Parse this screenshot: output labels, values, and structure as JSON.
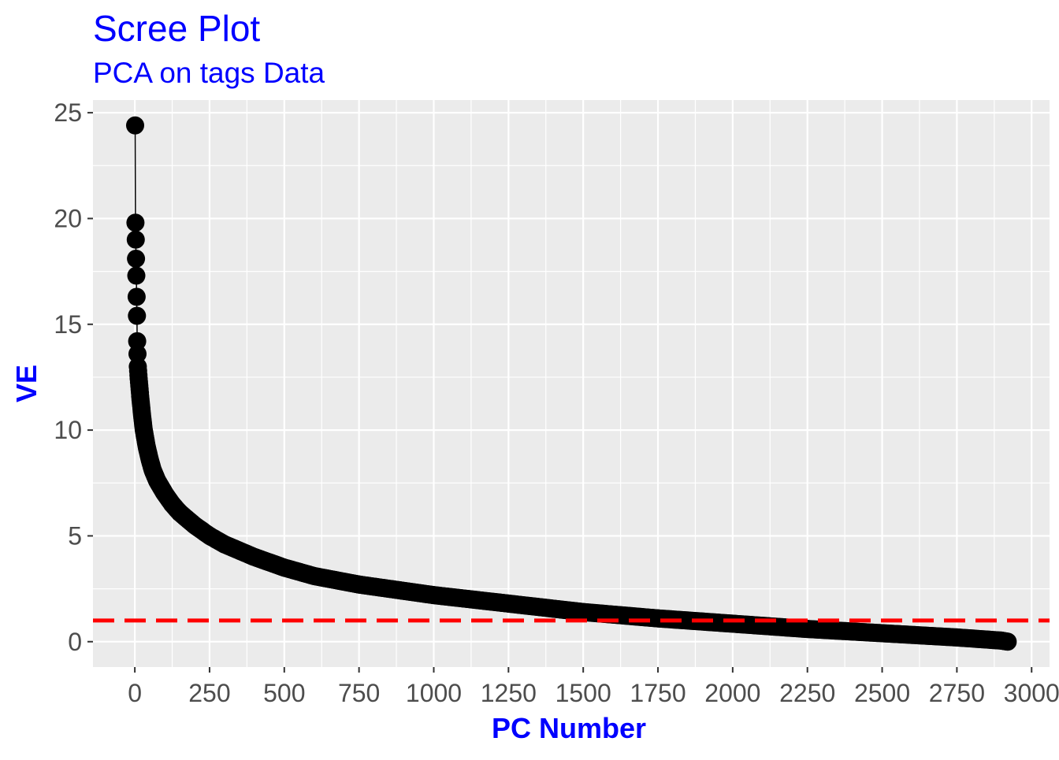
{
  "chart_data": {
    "type": "line",
    "title": "Scree Plot",
    "subtitle": "PCA on tags Data",
    "xlabel": "PC Number",
    "ylabel": "VE",
    "xlim": [
      -140,
      3060
    ],
    "ylim": [
      -1.2,
      25.6
    ],
    "x_ticks": [
      0,
      250,
      500,
      750,
      1000,
      1250,
      1500,
      1750,
      2000,
      2250,
      2500,
      2750,
      3000
    ],
    "x_tick_labels": [
      "0",
      "250",
      "500",
      "750",
      "1000",
      "1250",
      "1500",
      "1750",
      "2000",
      "2250",
      "2500",
      "2750",
      "3000"
    ],
    "y_ticks": [
      0,
      5,
      10,
      15,
      20,
      25
    ],
    "y_tick_labels": [
      "0",
      "5",
      "10",
      "15",
      "20",
      "25"
    ],
    "grid": true,
    "panel_background": "#ebebeb",
    "title_color": "#0000ff",
    "point_color": "#000000",
    "reference_line": {
      "y": 1,
      "color": "#ff0000",
      "style": "dashed"
    },
    "series": [
      {
        "n_points": 2920,
        "x": [
          1,
          2,
          3,
          4,
          5,
          6,
          7,
          8,
          9,
          10,
          12,
          15,
          18,
          20,
          25,
          30,
          40,
          50,
          60,
          75,
          100,
          125,
          150,
          200,
          250,
          300,
          400,
          500,
          600,
          750,
          1000,
          1250,
          1500,
          1750,
          2000,
          2250,
          2500,
          2750,
          2900,
          2920
        ],
        "y": [
          24.4,
          19.8,
          19.0,
          18.1,
          17.3,
          16.3,
          15.4,
          14.2,
          13.6,
          13.0,
          12.6,
          12.1,
          11.6,
          11.3,
          10.6,
          10.0,
          9.2,
          8.6,
          8.1,
          7.6,
          7.0,
          6.5,
          6.1,
          5.5,
          5.0,
          4.6,
          4.0,
          3.5,
          3.1,
          2.7,
          2.2,
          1.8,
          1.4,
          1.1,
          0.85,
          0.6,
          0.4,
          0.2,
          0.05,
          0.0
        ]
      }
    ]
  }
}
